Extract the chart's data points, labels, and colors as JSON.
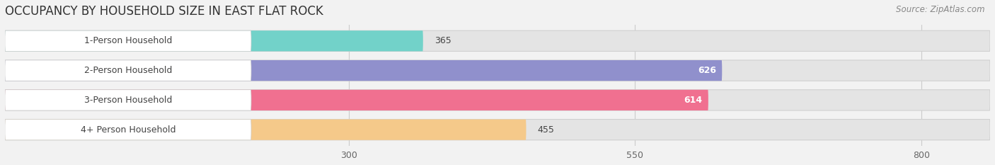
{
  "title": "OCCUPANCY BY HOUSEHOLD SIZE IN EAST FLAT ROCK",
  "source": "Source: ZipAtlas.com",
  "categories": [
    "1-Person Household",
    "2-Person Household",
    "3-Person Household",
    "4+ Person Household"
  ],
  "values": [
    365,
    626,
    614,
    455
  ],
  "bar_colors": [
    "#72d2c9",
    "#9090cc",
    "#f07090",
    "#f5c98a"
  ],
  "xlim_min": 0,
  "xlim_max": 860,
  "xticks": [
    300,
    550,
    800
  ],
  "background_color": "#f2f2f2",
  "bar_bg_color": "#e4e4e4",
  "title_fontsize": 12,
  "label_fontsize": 9,
  "value_fontsize": 9,
  "source_fontsize": 8.5
}
